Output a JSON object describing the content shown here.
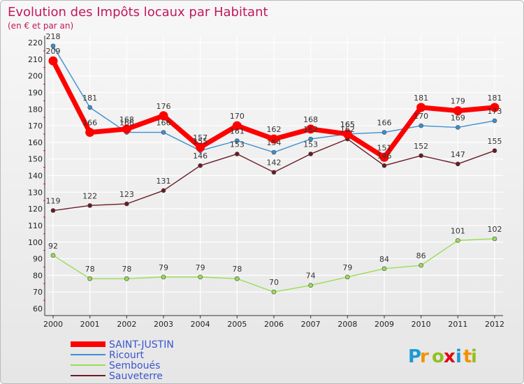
{
  "chart_data": {
    "type": "line",
    "title": "Evolution des Impôts locaux par Habitant",
    "subtitle": "(en € et par an)",
    "xlabel": "",
    "ylabel": "",
    "categories": [
      "2000",
      "2001",
      "2002",
      "2003",
      "2004",
      "2005",
      "2006",
      "2007",
      "2008",
      "2009",
      "2010",
      "2011",
      "2012"
    ],
    "ylim": [
      60,
      220
    ],
    "yticks": [
      60,
      70,
      80,
      90,
      100,
      110,
      120,
      130,
      140,
      150,
      160,
      170,
      180,
      190,
      200,
      210,
      220
    ],
    "grid": true,
    "legend_position": "bottom-left",
    "series": [
      {
        "name": "SAINT-JUSTIN",
        "color": "#ff0000",
        "values": [
          209,
          166,
          168,
          176,
          157,
          170,
          162,
          168,
          165,
          151,
          181,
          179,
          181
        ]
      },
      {
        "name": "Ricourt",
        "color": "#3c8fd0",
        "values": [
          218,
          181,
          166,
          166,
          155,
          161,
          154,
          162,
          165,
          166,
          170,
          169,
          173
        ]
      },
      {
        "name": "Semboués",
        "color": "#99dd55",
        "values": [
          92,
          78,
          78,
          79,
          79,
          78,
          70,
          74,
          79,
          84,
          86,
          101,
          102
        ]
      },
      {
        "name": "Sauveterre",
        "color": "#6b1a26",
        "values": [
          119,
          122,
          123,
          131,
          146,
          153,
          142,
          153,
          162,
          146,
          152,
          147,
          155
        ]
      }
    ],
    "data_labels": [
      {
        "series": "Ricourt",
        "values": [
          "218",
          "181",
          "166",
          "166",
          "155",
          "161",
          "154",
          "162",
          "165",
          "166",
          "170",
          "169",
          "173"
        ]
      },
      {
        "series": "SAINT-JUSTIN",
        "values": [
          "209",
          "166",
          "168",
          "176",
          "157",
          "170",
          "162",
          "168",
          "165",
          "151",
          "181",
          "179",
          "181"
        ]
      },
      {
        "series": "Sauveterre",
        "values": [
          "119",
          "122",
          "123",
          "131",
          "146",
          "153",
          "142",
          "153",
          "162",
          "146",
          "152",
          "147",
          "155"
        ]
      },
      {
        "series": "Semboués",
        "values": [
          "92",
          "78",
          "78",
          "79",
          "79",
          "78",
          "70",
          "74",
          "79",
          "84",
          "86",
          "101",
          "102"
        ]
      }
    ]
  },
  "brand": {
    "letters": [
      "P",
      "r",
      "o",
      "x",
      "i",
      "t",
      "i"
    ],
    "colors": [
      "#1b9ad6",
      "#f39200",
      "#93c01f",
      "#e30613",
      "#1b9ad6",
      "#f39200",
      "#93c01f"
    ]
  }
}
